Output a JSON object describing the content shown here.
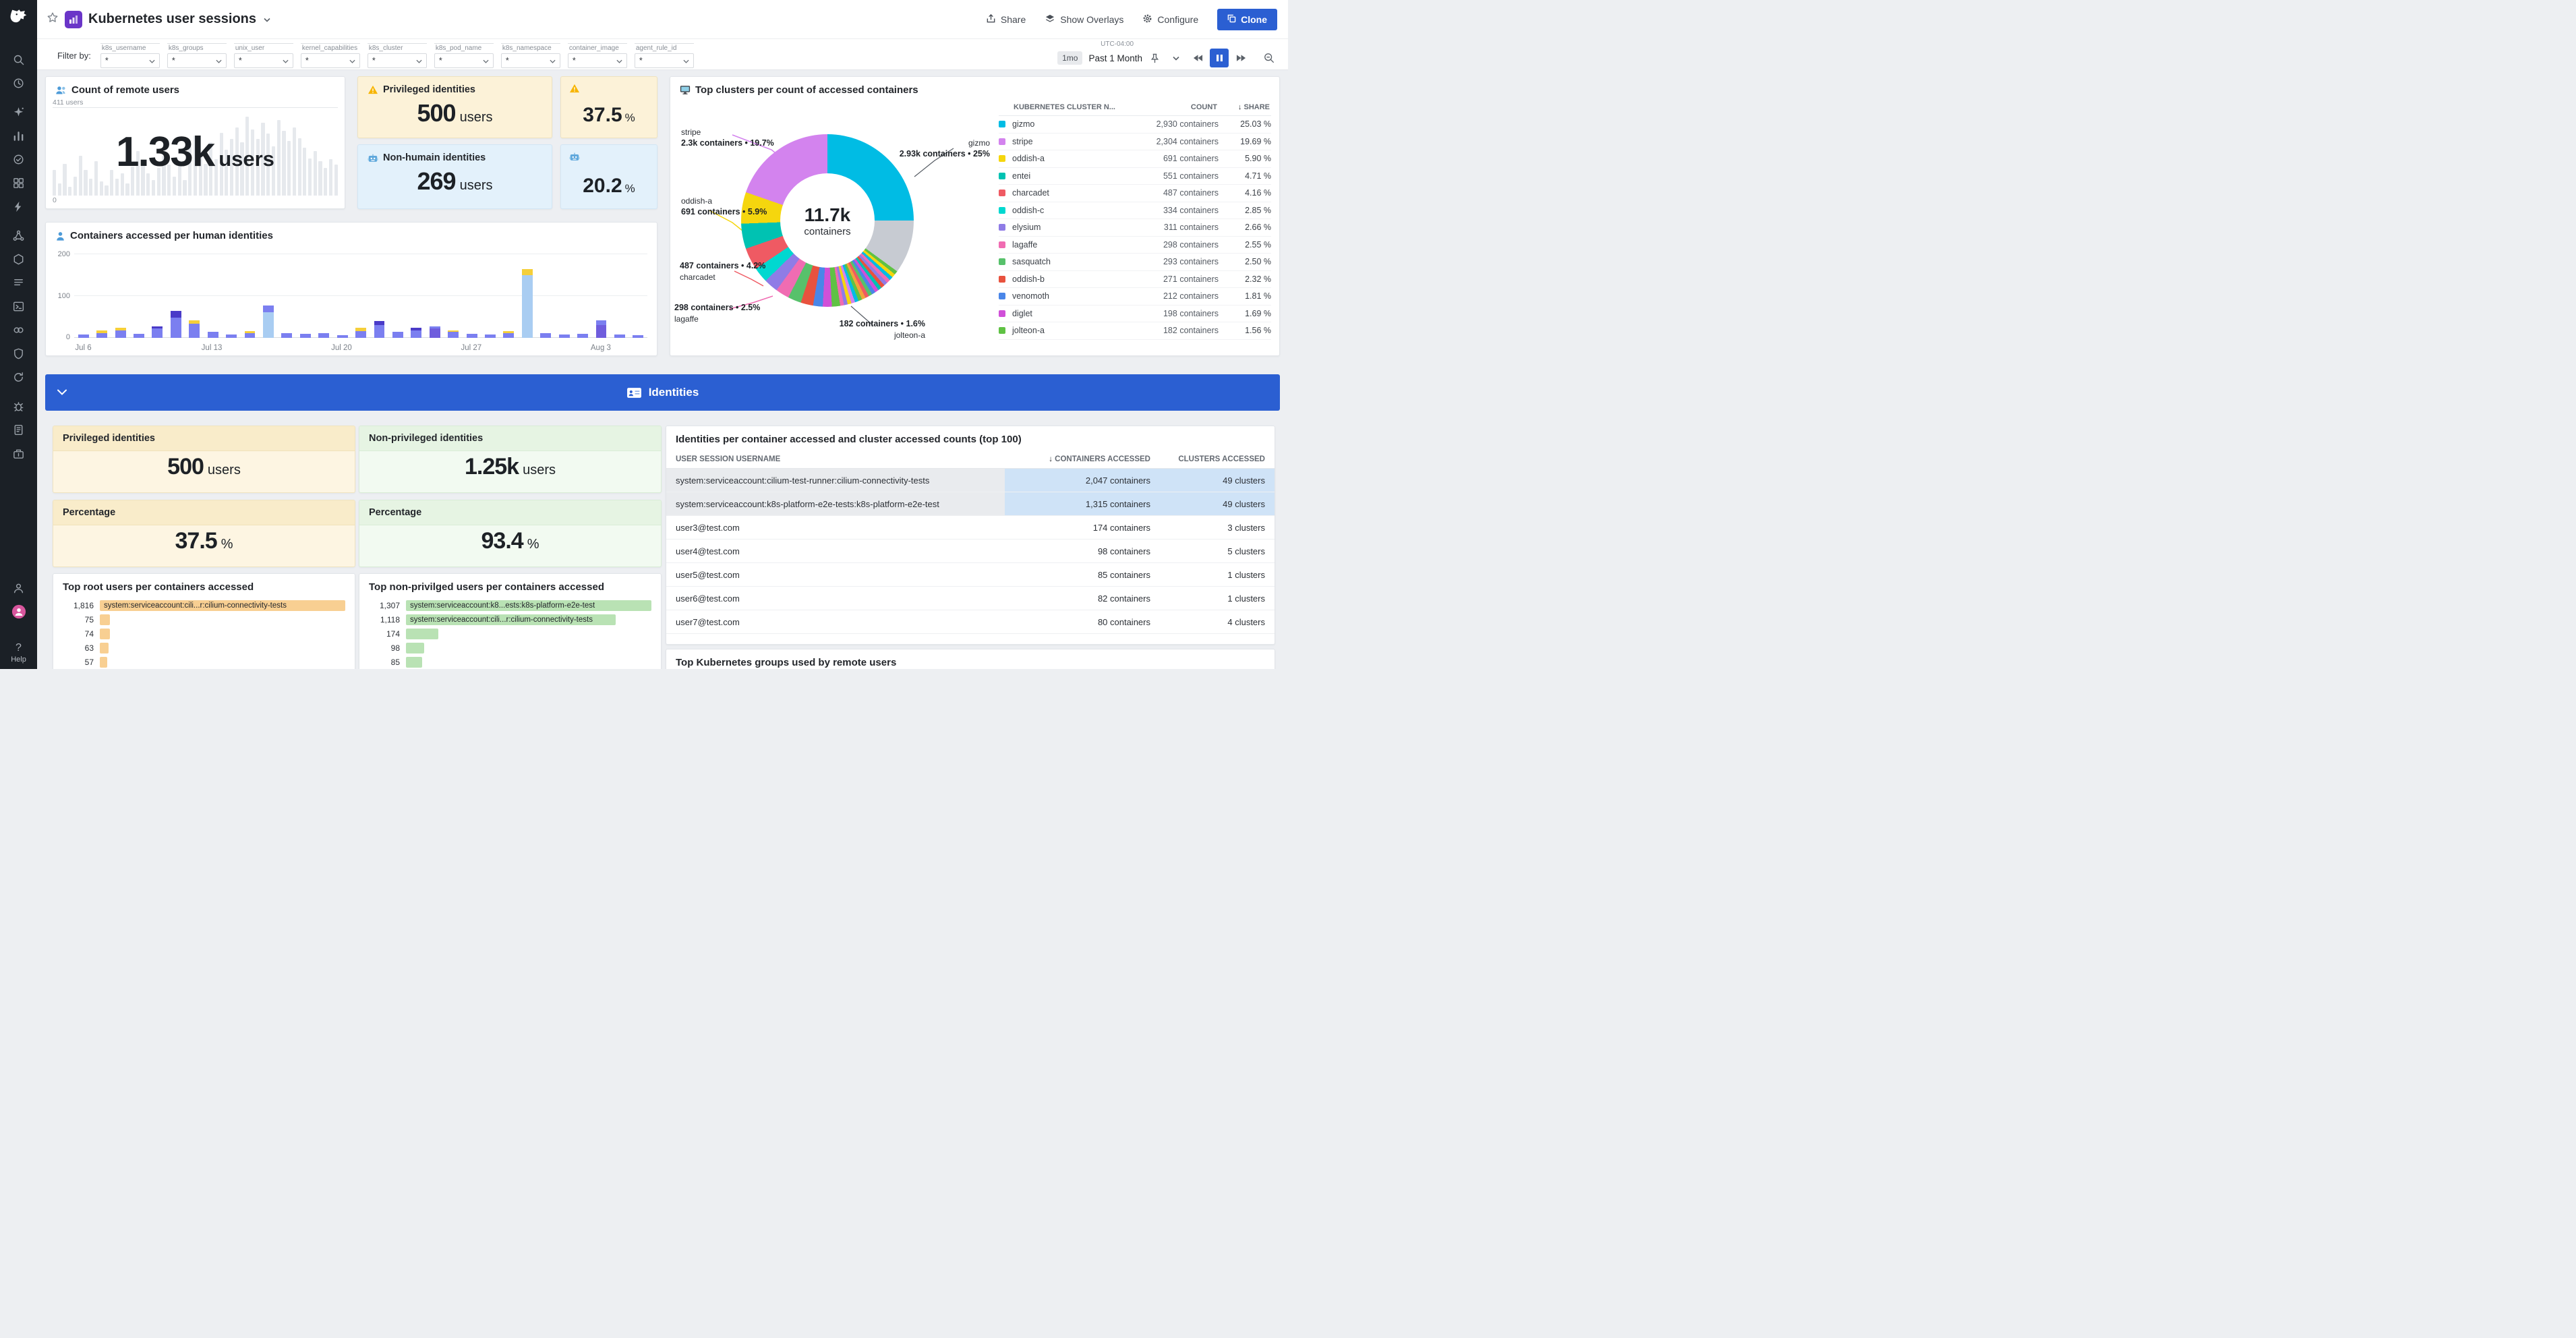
{
  "header": {
    "title": "Kubernetes user sessions",
    "share": "Share",
    "overlays": "Show Overlays",
    "configure": "Configure",
    "clone": "Clone"
  },
  "filters": {
    "label": "Filter by:",
    "fields": [
      {
        "name": "k8s_username",
        "value": "*"
      },
      {
        "name": "k8s_groups",
        "value": "*"
      },
      {
        "name": "unix_user",
        "value": "*"
      },
      {
        "name": "kernel_capabilities",
        "value": "*"
      },
      {
        "name": "k8s_cluster",
        "value": "*"
      },
      {
        "name": "k8s_pod_name",
        "value": "*"
      },
      {
        "name": "k8s_namespace",
        "value": "*"
      },
      {
        "name": "container_image",
        "value": "*"
      },
      {
        "name": "agent_rule_id",
        "value": "*"
      }
    ],
    "time": {
      "tz": "UTC-04:00",
      "badge": "1mo",
      "range": "Past 1 Month"
    }
  },
  "banner": {
    "title": "Identities"
  },
  "sidebar": {
    "groups": [
      [
        "search",
        "history"
      ],
      [
        "watchdog",
        "metrics",
        "monitors",
        "dashboards",
        "events"
      ],
      [
        "apm",
        "infrastructure",
        "logs",
        "ci",
        "integrations",
        "security",
        "synthetics"
      ],
      [
        "error-tracking",
        "notebooks",
        "releases"
      ]
    ],
    "bottom": [
      "org",
      "avatar"
    ],
    "help": "Help"
  },
  "cards": {
    "remote_users": {
      "title": "Count of remote users",
      "value": "1.33k",
      "unit": "users",
      "axis_max": "411 users",
      "axis_min": "0",
      "chart_data": {
        "type": "bar",
        "ylim": [
          0,
          411
        ],
        "values": [
          120,
          56,
          150,
          40,
          90,
          185,
          120,
          80,
          160,
          65,
          48,
          120,
          80,
          105,
          56,
          135,
          210,
          160,
          105,
          72,
          130,
          185,
          145,
          90,
          160,
          72,
          230,
          280,
          190,
          150,
          250,
          170,
          295,
          215,
          265,
          320,
          250,
          370,
          310,
          265,
          340,
          290,
          230,
          355,
          305,
          255,
          320,
          270,
          225,
          175,
          210,
          160,
          130,
          170,
          145
        ]
      }
    },
    "privileged_top": {
      "title": "Privileged identities",
      "value": "500",
      "unit": "users"
    },
    "privileged_pct_top": {
      "value": "37.5",
      "unit": "%"
    },
    "non_human": {
      "title": "Non-humain identities",
      "value": "269",
      "unit": "users"
    },
    "non_human_pct": {
      "value": "20.2",
      "unit": "%"
    },
    "top_clusters": {
      "title": "Top clusters per count of accessed containers",
      "center_value": "11.7k",
      "center_unit": "containers",
      "callouts": {
        "stripe": {
          "name": "stripe",
          "text": "2.3k containers • 19.7%"
        },
        "gizmo": {
          "name": "gizmo",
          "text": "2.93k containers • 25%"
        },
        "oddish": {
          "name": "oddish-a",
          "text": "691 containers • 5.9%"
        },
        "charcadet": {
          "name": "charcadet",
          "text": "487 containers • 4.2%"
        },
        "lagaffe": {
          "name": "lagaffe",
          "text": "298 containers • 2.5%"
        },
        "jolteon": {
          "name": "jolteon-a",
          "text": "182 containers • 1.6%"
        }
      },
      "chart_data": {
        "type": "pie",
        "slices": [
          {
            "label": "gizmo",
            "value": 25.03,
            "color": "#00bce4"
          },
          {
            "label": "rest",
            "value": 10.0,
            "color": "#c7cbd2"
          },
          {
            "label": "",
            "value": 0.7,
            "color": "#5fc244"
          },
          {
            "label": "",
            "value": 0.7,
            "color": "#f5d60e"
          },
          {
            "label": "",
            "value": 0.7,
            "color": "#00bce4"
          },
          {
            "label": "",
            "value": 0.7,
            "color": "#f06cb2"
          },
          {
            "label": "",
            "value": 0.7,
            "color": "#8f7ce6"
          },
          {
            "label": "",
            "value": 0.7,
            "color": "#e8523e"
          },
          {
            "label": "",
            "value": 0.7,
            "color": "#00c2b2"
          },
          {
            "label": "",
            "value": 0.7,
            "color": "#d050d8"
          },
          {
            "label": "",
            "value": 0.7,
            "color": "#4a86e8"
          },
          {
            "label": "",
            "value": 0.7,
            "color": "#57c16b"
          },
          {
            "label": "",
            "value": 0.7,
            "color": "#ef5a63"
          },
          {
            "label": "",
            "value": 0.7,
            "color": "#f0a33c"
          },
          {
            "label": "",
            "value": 0.7,
            "color": "#5fc244"
          },
          {
            "label": "",
            "value": 0.7,
            "color": "#00bce4"
          },
          {
            "label": "",
            "value": 0.7,
            "color": "#d383ee"
          },
          {
            "label": "",
            "value": 0.7,
            "color": "#f5d60e"
          },
          {
            "label": "",
            "value": 0.7,
            "color": "#8f7ce6"
          },
          {
            "label": "",
            "value": 0.7,
            "color": "#f06cb2"
          },
          {
            "label": "jolteon-a",
            "value": 1.56,
            "color": "#5fc244"
          },
          {
            "label": "diglet",
            "value": 1.69,
            "color": "#d050d8"
          },
          {
            "label": "venomoth",
            "value": 1.81,
            "color": "#4a86e8"
          },
          {
            "label": "oddish-b",
            "value": 2.32,
            "color": "#e8523e"
          },
          {
            "label": "sasquatch",
            "value": 2.5,
            "color": "#57c16b"
          },
          {
            "label": "lagaffe",
            "value": 2.55,
            "color": "#f06cb2"
          },
          {
            "label": "elysium",
            "value": 2.66,
            "color": "#8f7ce6"
          },
          {
            "label": "oddish-c",
            "value": 2.85,
            "color": "#00d8d0"
          },
          {
            "label": "charcadet",
            "value": 4.16,
            "color": "#ef5a63"
          },
          {
            "label": "entei",
            "value": 4.71,
            "color": "#00c2b2"
          },
          {
            "label": "oddish-a",
            "value": 5.9,
            "color": "#f5d60e"
          },
          {
            "label": "stripe",
            "value": 19.69,
            "color": "#d383ee"
          }
        ]
      },
      "table": {
        "headers": [
          "KUBERNETES CLUSTER N...",
          "COUNT",
          "SHARE"
        ],
        "rows": [
          {
            "name": "gizmo",
            "count": "2,930 containers",
            "share": "25.03 %",
            "color": "#00bce4"
          },
          {
            "name": "stripe",
            "count": "2,304 containers",
            "share": "19.69 %",
            "color": "#d383ee"
          },
          {
            "name": "oddish-a",
            "count": "691 containers",
            "share": "5.90 %",
            "color": "#f5d60e"
          },
          {
            "name": "entei",
            "count": "551 containers",
            "share": "4.71 %",
            "color": "#00c2b2"
          },
          {
            "name": "charcadet",
            "count": "487 containers",
            "share": "4.16 %",
            "color": "#ef5a63"
          },
          {
            "name": "oddish-c",
            "count": "334 containers",
            "share": "2.85 %",
            "color": "#00d8d0"
          },
          {
            "name": "elysium",
            "count": "311 containers",
            "share": "2.66 %",
            "color": "#8f7ce6"
          },
          {
            "name": "lagaffe",
            "count": "298 containers",
            "share": "2.55 %",
            "color": "#f06cb2"
          },
          {
            "name": "sasquatch",
            "count": "293 containers",
            "share": "2.50 %",
            "color": "#57c16b"
          },
          {
            "name": "oddish-b",
            "count": "271 containers",
            "share": "2.32 %",
            "color": "#e8523e"
          },
          {
            "name": "venomoth",
            "count": "212 containers",
            "share": "1.81 %",
            "color": "#4a86e8"
          },
          {
            "name": "diglet",
            "count": "198 containers",
            "share": "1.69 %",
            "color": "#d050d8"
          },
          {
            "name": "jolteon-a",
            "count": "182 containers",
            "share": "1.56 %",
            "color": "#5fc244"
          }
        ]
      }
    },
    "human_chart": {
      "title": "Containers accessed per human identities",
      "yticks": [
        "200",
        "100",
        "0"
      ],
      "palette": [
        "#7b7ff0",
        "#4a3bc8",
        "#f5cf3a",
        "#a9cdf2",
        "#6f5ddd"
      ],
      "chart_data": {
        "type": "bar",
        "stacked": true,
        "ylim": [
          0,
          200
        ],
        "bars": [
          {
            "s": [
              [
                0,
                8
              ]
            ]
          },
          {
            "s": [
              [
                0,
                12
              ],
              [
                2,
                5
              ]
            ]
          },
          {
            "s": [
              [
                0,
                18
              ],
              [
                2,
                6
              ]
            ]
          },
          {
            "s": [
              [
                0,
                10
              ]
            ]
          },
          {
            "s": [
              [
                0,
                22
              ],
              [
                1,
                6
              ]
            ]
          },
          {
            "s": [
              [
                0,
                48
              ],
              [
                1,
                16
              ]
            ]
          },
          {
            "s": [
              [
                0,
                34
              ],
              [
                2,
                8
              ]
            ]
          },
          {
            "s": [
              [
                0,
                14
              ]
            ]
          },
          {
            "s": [
              [
                0,
                8
              ]
            ]
          },
          {
            "s": [
              [
                0,
                12
              ],
              [
                2,
                4
              ]
            ]
          },
          {
            "s": [
              [
                3,
                62
              ],
              [
                0,
                16
              ]
            ]
          },
          {
            "s": [
              [
                0,
                12
              ]
            ]
          },
          {
            "s": [
              [
                0,
                9
              ]
            ]
          },
          {
            "s": [
              [
                0,
                12
              ]
            ]
          },
          {
            "s": [
              [
                0,
                7
              ]
            ]
          },
          {
            "s": [
              [
                0,
                16
              ],
              [
                2,
                8
              ]
            ]
          },
          {
            "s": [
              [
                0,
                30
              ],
              [
                1,
                10
              ]
            ]
          },
          {
            "s": [
              [
                0,
                14
              ]
            ]
          },
          {
            "s": [
              [
                0,
                18
              ],
              [
                1,
                6
              ]
            ]
          },
          {
            "s": [
              [
                4,
                22
              ],
              [
                0,
                6
              ]
            ]
          },
          {
            "s": [
              [
                0,
                14
              ],
              [
                2,
                4
              ]
            ]
          },
          {
            "s": [
              [
                0,
                10
              ]
            ]
          },
          {
            "s": [
              [
                0,
                8
              ]
            ]
          },
          {
            "s": [
              [
                0,
                12
              ],
              [
                2,
                4
              ]
            ]
          },
          {
            "s": [
              [
                3,
                150
              ],
              [
                2,
                15
              ]
            ]
          },
          {
            "s": [
              [
                0,
                12
              ]
            ]
          },
          {
            "s": [
              [
                0,
                8
              ]
            ]
          },
          {
            "s": [
              [
                0,
                10
              ]
            ]
          },
          {
            "s": [
              [
                4,
                30
              ],
              [
                0,
                12
              ]
            ]
          },
          {
            "s": [
              [
                0,
                8
              ]
            ]
          },
          {
            "s": [
              [
                0,
                6
              ]
            ]
          }
        ],
        "xlabels": [
          {
            "i": 0,
            "t": "Jul 6"
          },
          {
            "i": 7,
            "t": "Jul 13"
          },
          {
            "i": 14,
            "t": "Jul 20"
          },
          {
            "i": 21,
            "t": "Jul 27"
          },
          {
            "i": 28,
            "t": "Aug 3"
          }
        ]
      }
    },
    "privileged": {
      "title": "Privileged identities",
      "value": "500",
      "unit": "users"
    },
    "privileged_pct": {
      "title": "Percentage",
      "value": "37.5",
      "unit": "%"
    },
    "non_privileged": {
      "title": "Non-privileged identities",
      "value": "1.25k",
      "unit": "users"
    },
    "non_privileged_pct": {
      "title": "Percentage",
      "value": "93.4",
      "unit": "%"
    },
    "top_root": {
      "title": "Top root users per containers accessed",
      "color": "#f8cf92",
      "rows": [
        {
          "value": "1,816",
          "label": "system:serviceaccount:cili...r:cilium-connectivity-tests",
          "pct": 100
        },
        {
          "value": "75",
          "label": "",
          "pct": 4.1
        },
        {
          "value": "74",
          "label": "",
          "pct": 4.1
        },
        {
          "value": "63",
          "label": "",
          "pct": 3.5
        },
        {
          "value": "57",
          "label": "",
          "pct": 3.1
        }
      ]
    },
    "top_nonpriv": {
      "title": "Top non-privilged users per containers accessed",
      "color": "#b9e2b4",
      "rows": [
        {
          "value": "1,307",
          "label": "system:serviceaccount:k8...ests:k8s-platform-e2e-test",
          "pct": 100
        },
        {
          "value": "1,118",
          "label": "system:serviceaccount:cili...r:cilium-connectivity-tests",
          "pct": 85.5
        },
        {
          "value": "174",
          "label": "",
          "pct": 13.3
        },
        {
          "value": "98",
          "label": "",
          "pct": 7.5
        },
        {
          "value": "85",
          "label": "",
          "pct": 6.5
        }
      ]
    },
    "id_table": {
      "title": "Identities per container accessed and cluster accessed counts (top 100)",
      "headers": [
        "USER SESSION USERNAME",
        "CONTAINERS ACCESSED",
        "CLUSTERS ACCESSED"
      ],
      "rows": [
        {
          "user": "system:serviceaccount:cilium-test-runner:cilium-connectivity-tests",
          "containers": "2,047 containers",
          "clusters": "49 clusters",
          "hl": true
        },
        {
          "user": "system:serviceaccount:k8s-platform-e2e-tests:k8s-platform-e2e-test",
          "containers": "1,315 containers",
          "clusters": "49 clusters",
          "hl": true
        },
        {
          "user": "user3@test.com",
          "containers": "174 containers",
          "clusters": "3 clusters",
          "hl": false
        },
        {
          "user": "user4@test.com",
          "containers": "98 containers",
          "clusters": "5 clusters",
          "hl": false
        },
        {
          "user": "user5@test.com",
          "containers": "85 containers",
          "clusters": "1 clusters",
          "hl": false
        },
        {
          "user": "user6@test.com",
          "containers": "82 containers",
          "clusters": "1 clusters",
          "hl": false
        },
        {
          "user": "user7@test.com",
          "containers": "80 containers",
          "clusters": "4 clusters",
          "hl": false
        }
      ]
    },
    "groups_card": {
      "title": "Top Kubernetes groups used by remote users"
    }
  },
  "colors": {
    "accent": "#2b5fd2",
    "cream": "#fcf2d8",
    "lightblue": "#e3f1fb",
    "lightgreen": "#f2faf1"
  }
}
